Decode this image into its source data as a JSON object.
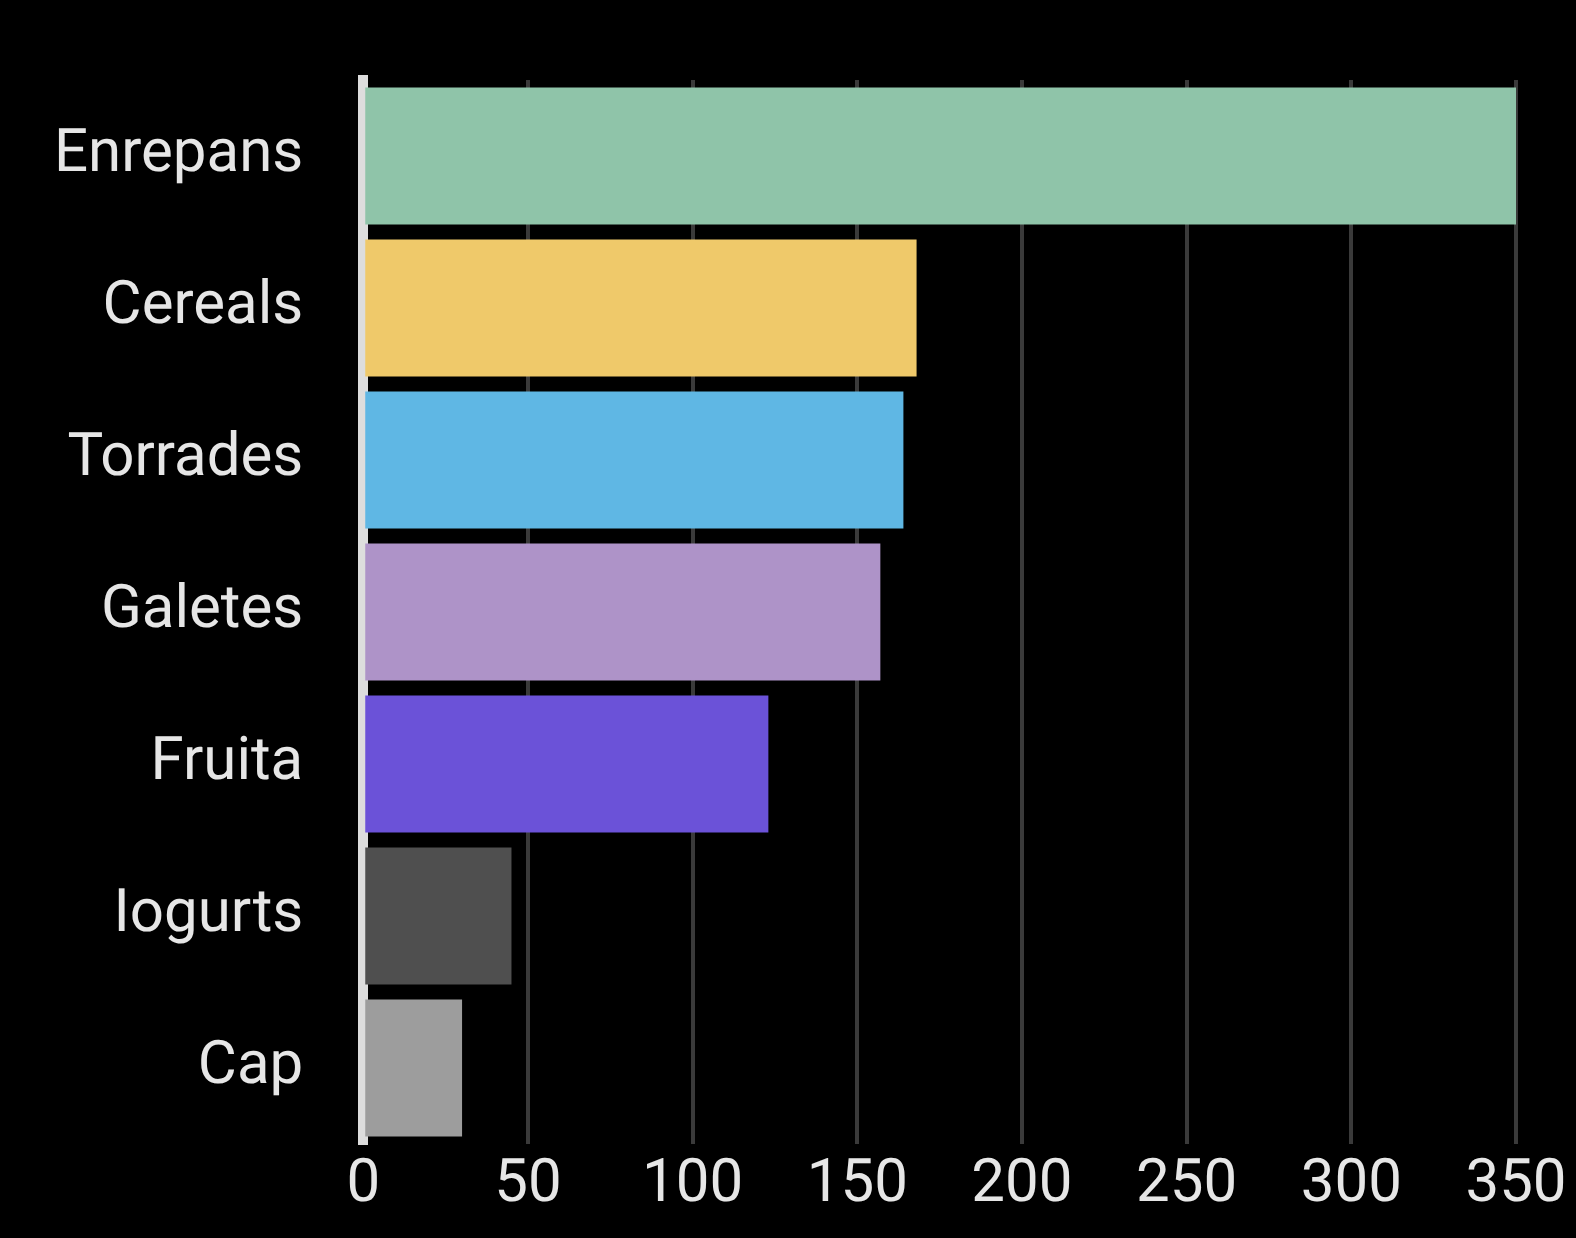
{
  "chart_data": {
    "type": "bar",
    "orientation": "horizontal",
    "categories": [
      "Enrepans",
      "Cereals",
      "Torrades",
      "Galetes",
      "Fruita",
      "Iogurts",
      "Cap"
    ],
    "values": [
      350,
      168,
      164,
      157,
      123,
      45,
      30
    ],
    "colors": [
      "#8fc4a9",
      "#efc96a",
      "#5fb7e4",
      "#ae93c8",
      "#6b52d8",
      "#4f4f4f",
      "#9d9d9d"
    ],
    "xlim": [
      0,
      350
    ],
    "xticks": [
      0,
      50,
      100,
      150,
      200,
      250,
      300,
      350
    ],
    "grid": "x",
    "legend": false
  }
}
